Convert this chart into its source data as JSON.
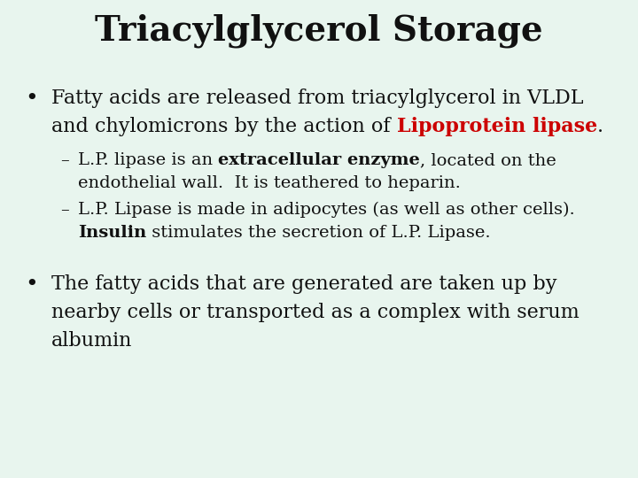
{
  "title": "Triacylglycerol Storage",
  "background_color": "#e8f5ee",
  "title_fontsize": 28,
  "body_fontsize": 16,
  "sub_fontsize": 14,
  "text_color": "#111111",
  "red_color": "#cc0000",
  "bullet1_line1": "Fatty acids are released from triacylglycerol in VLDL",
  "bullet1_line2_pre": "and chylomicrons by the action of ",
  "bullet1_line2_red": "Lipoprotein lipase",
  "bullet1_line2_post": ".",
  "sub1_pre": "L.P. lipase is an ",
  "sub1_bold": "extracellular enzyme",
  "sub1_post": ", located on the",
  "sub1_line2": "endothelial wall.  It is teathered to heparin.",
  "sub2_line1": "L.P. Lipase is made in adipocytes (as well as other cells).",
  "sub2_bold": "Insulin",
  "sub2_post": " stimulates the secretion of L.P. Lipase.",
  "bullet2_line1": "The fatty acids that are generated are taken up by",
  "bullet2_line2": "nearby cells or transported as a complex with serum",
  "bullet2_line3": "albumin"
}
